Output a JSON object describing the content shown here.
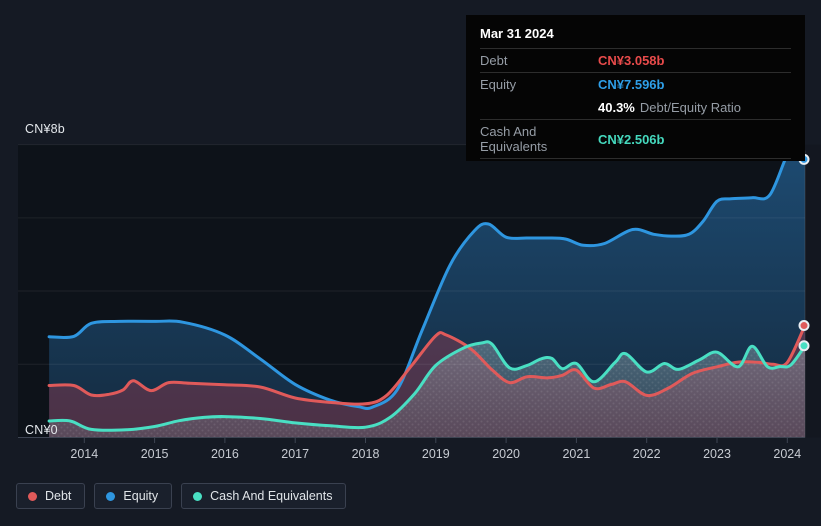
{
  "colors": {
    "debt": "#e05a5a",
    "equity": "#2e96e0",
    "cash": "#49dfc3",
    "debt_value_text": "#e84b4b",
    "equity_value_text": "#2e9fe8",
    "cash_value_text": "#45d9be",
    "page_bg": "#151a24",
    "plot_bg": "#0d1219",
    "grid": "rgba(255,255,255,0.07)",
    "axis": "#3e4553",
    "future_overlay": "rgba(18,22,30,0.62)"
  },
  "y_axis": {
    "top_label": "CN¥8b",
    "bottom_label": "CN¥0"
  },
  "tooltip": {
    "date": "Mar 31 2024",
    "debt_label": "Debt",
    "debt_value": "CN¥3.058b",
    "equity_label": "Equity",
    "equity_value": "CN¥7.596b",
    "ratio_bold": "40.3%",
    "ratio_text": "Debt/Equity Ratio",
    "cash_label": "Cash And Equivalents",
    "cash_value": "CN¥2.506b"
  },
  "legend": {
    "items": [
      {
        "label": "Debt"
      },
      {
        "label": "Equity"
      },
      {
        "label": "Cash And Equivalents"
      }
    ]
  },
  "chart_data": {
    "type": "area",
    "unit": "CN¥ billions",
    "x_axis": {
      "ticks": [
        2014,
        2015,
        2016,
        2017,
        2018,
        2019,
        2020,
        2021,
        2022,
        2023,
        2024
      ],
      "range": [
        2013.5,
        2024.25
      ]
    },
    "y_axis": {
      "range": [
        0,
        8
      ],
      "gridline_values": [
        8,
        6,
        4,
        2
      ],
      "labeled_ticks": [
        {
          "value": 8,
          "label": "CN¥8b"
        },
        {
          "value": 0,
          "label": "CN¥0"
        }
      ]
    },
    "legend_position": "bottom-left",
    "end_point": {
      "date": "Mar 31 2024",
      "debt": 3.058,
      "equity": 7.596,
      "cash": 2.506,
      "debt_equity_ratio_pct": 40.3
    },
    "series": [
      {
        "name": "Equity",
        "color_key": "equity",
        "points": [
          [
            2013.5,
            2.75
          ],
          [
            2013.85,
            2.76
          ],
          [
            2014.1,
            3.12
          ],
          [
            2014.5,
            3.17
          ],
          [
            2015.0,
            3.17
          ],
          [
            2015.4,
            3.15
          ],
          [
            2016.0,
            2.8
          ],
          [
            2016.5,
            2.15
          ],
          [
            2017.0,
            1.45
          ],
          [
            2017.5,
            1.02
          ],
          [
            2017.9,
            0.84
          ],
          [
            2018.1,
            0.83
          ],
          [
            2018.45,
            1.3
          ],
          [
            2018.8,
            2.9
          ],
          [
            2019.2,
            4.7
          ],
          [
            2019.55,
            5.65
          ],
          [
            2019.75,
            5.83
          ],
          [
            2020.0,
            5.47
          ],
          [
            2020.3,
            5.45
          ],
          [
            2020.6,
            5.45
          ],
          [
            2020.85,
            5.42
          ],
          [
            2021.1,
            5.25
          ],
          [
            2021.4,
            5.3
          ],
          [
            2021.8,
            5.68
          ],
          [
            2022.1,
            5.55
          ],
          [
            2022.35,
            5.5
          ],
          [
            2022.6,
            5.55
          ],
          [
            2022.8,
            5.9
          ],
          [
            2023.0,
            6.45
          ],
          [
            2023.2,
            6.52
          ],
          [
            2023.5,
            6.55
          ],
          [
            2023.75,
            6.62
          ],
          [
            2024.0,
            7.72
          ],
          [
            2024.1,
            7.75
          ],
          [
            2024.25,
            7.596
          ]
        ]
      },
      {
        "name": "Debt",
        "color_key": "debt",
        "points": [
          [
            2013.5,
            1.42
          ],
          [
            2013.85,
            1.42
          ],
          [
            2014.1,
            1.16
          ],
          [
            2014.35,
            1.18
          ],
          [
            2014.55,
            1.3
          ],
          [
            2014.7,
            1.55
          ],
          [
            2014.95,
            1.28
          ],
          [
            2015.2,
            1.5
          ],
          [
            2015.5,
            1.48
          ],
          [
            2016.0,
            1.44
          ],
          [
            2016.5,
            1.38
          ],
          [
            2017.0,
            1.08
          ],
          [
            2017.5,
            0.96
          ],
          [
            2018.0,
            0.92
          ],
          [
            2018.3,
            1.15
          ],
          [
            2018.65,
            1.95
          ],
          [
            2019.0,
            2.78
          ],
          [
            2019.15,
            2.8
          ],
          [
            2019.5,
            2.42
          ],
          [
            2019.8,
            1.85
          ],
          [
            2020.05,
            1.5
          ],
          [
            2020.3,
            1.66
          ],
          [
            2020.6,
            1.63
          ],
          [
            2020.8,
            1.7
          ],
          [
            2021.0,
            1.84
          ],
          [
            2021.25,
            1.35
          ],
          [
            2021.5,
            1.45
          ],
          [
            2021.7,
            1.52
          ],
          [
            2022.0,
            1.15
          ],
          [
            2022.3,
            1.34
          ],
          [
            2022.65,
            1.75
          ],
          [
            2023.0,
            1.93
          ],
          [
            2023.3,
            2.06
          ],
          [
            2023.6,
            2.05
          ],
          [
            2023.8,
            2.0
          ],
          [
            2024.0,
            2.05
          ],
          [
            2024.25,
            3.058
          ]
        ]
      },
      {
        "name": "Cash And Equivalents",
        "color_key": "cash",
        "points": [
          [
            2013.5,
            0.45
          ],
          [
            2013.8,
            0.45
          ],
          [
            2014.1,
            0.22
          ],
          [
            2014.6,
            0.21
          ],
          [
            2015.0,
            0.3
          ],
          [
            2015.35,
            0.46
          ],
          [
            2015.7,
            0.55
          ],
          [
            2016.0,
            0.57
          ],
          [
            2016.5,
            0.52
          ],
          [
            2017.0,
            0.4
          ],
          [
            2017.5,
            0.32
          ],
          [
            2018.0,
            0.28
          ],
          [
            2018.35,
            0.55
          ],
          [
            2018.7,
            1.2
          ],
          [
            2019.0,
            1.97
          ],
          [
            2019.4,
            2.45
          ],
          [
            2019.65,
            2.58
          ],
          [
            2019.8,
            2.55
          ],
          [
            2020.05,
            1.9
          ],
          [
            2020.3,
            1.97
          ],
          [
            2020.5,
            2.15
          ],
          [
            2020.65,
            2.16
          ],
          [
            2020.8,
            1.88
          ],
          [
            2021.0,
            2.02
          ],
          [
            2021.25,
            1.52
          ],
          [
            2021.55,
            2.05
          ],
          [
            2021.7,
            2.29
          ],
          [
            2022.0,
            1.79
          ],
          [
            2022.25,
            2.02
          ],
          [
            2022.45,
            1.86
          ],
          [
            2022.75,
            2.12
          ],
          [
            2023.0,
            2.33
          ],
          [
            2023.3,
            1.93
          ],
          [
            2023.5,
            2.49
          ],
          [
            2023.72,
            1.93
          ],
          [
            2023.9,
            1.94
          ],
          [
            2024.05,
            1.98
          ],
          [
            2024.25,
            2.506
          ]
        ]
      }
    ]
  }
}
